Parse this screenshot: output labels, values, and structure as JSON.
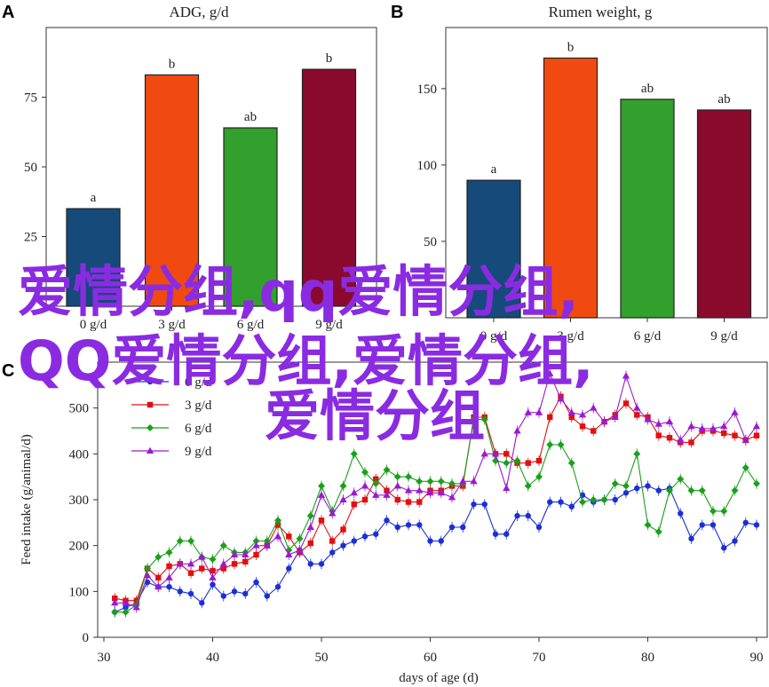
{
  "chart_data": [
    {
      "panel_label": "A",
      "type": "bar",
      "title": "ADG, g/d",
      "categories": [
        "0 g/d",
        "3 g/d",
        "6 g/d",
        "9 g/d"
      ],
      "values": [
        35,
        83,
        64,
        85
      ],
      "labels": [
        "a",
        "b",
        "ab",
        "b"
      ],
      "colors": [
        "#154a7a",
        "#f04a10",
        "#32a02c",
        "#8a0a2e"
      ],
      "ylim": [
        0,
        100
      ],
      "yticks": [
        25,
        50,
        75
      ]
    },
    {
      "panel_label": "B",
      "type": "bar",
      "title": "Rumen weight, g",
      "categories": [
        "0 g/d",
        "3 g/d",
        "6 g/d",
        "9 g/d"
      ],
      "values": [
        90,
        170,
        143,
        136
      ],
      "labels": [
        "a",
        "b",
        "ab",
        "ab"
      ],
      "colors": [
        "#154a7a",
        "#f04a10",
        "#32a02c",
        "#8a0a2e"
      ],
      "ylim": [
        0,
        190
      ],
      "yticks": [
        50,
        100,
        150
      ]
    },
    {
      "panel_label": "C",
      "type": "line",
      "xlabel": "days of age (d)",
      "ylabel": "Feed intake (g/animal/d)",
      "xlim": [
        30,
        90
      ],
      "ylim": [
        0,
        600
      ],
      "xticks": [
        30,
        40,
        50,
        60,
        70,
        80,
        90
      ],
      "yticks": [
        0,
        100,
        200,
        300,
        400,
        500
      ],
      "legend_position": "top-left",
      "series": [
        {
          "name": "0 g/d",
          "color": "#1a2fd6",
          "marker": "circle",
          "x": [
            31,
            32,
            33,
            34,
            35,
            36,
            37,
            38,
            39,
            40,
            41,
            42,
            43,
            44,
            45,
            46,
            47,
            48,
            49,
            50,
            51,
            52,
            53,
            54,
            55,
            56,
            57,
            58,
            59,
            60,
            61,
            62,
            63,
            64,
            65,
            66,
            67,
            68,
            69,
            70,
            71,
            72,
            73,
            74,
            75,
            76,
            77,
            78,
            79,
            80,
            81,
            82,
            83,
            84,
            85,
            86,
            87,
            88,
            89,
            90
          ],
          "y": [
            55,
            65,
            75,
            120,
            110,
            110,
            100,
            95,
            75,
            115,
            90,
            100,
            95,
            120,
            90,
            110,
            150,
            190,
            160,
            160,
            185,
            200,
            210,
            220,
            225,
            255,
            240,
            245,
            245,
            210,
            210,
            240,
            240,
            290,
            290,
            225,
            225,
            265,
            265,
            240,
            295,
            295,
            285,
            310,
            295,
            300,
            300,
            315,
            325,
            330,
            320,
            325,
            270,
            215,
            245,
            245,
            195,
            210,
            250,
            245
          ]
        },
        {
          "name": "3 g/d",
          "color": "#e01010",
          "marker": "square",
          "x": [
            31,
            32,
            33,
            34,
            35,
            36,
            37,
            38,
            39,
            40,
            41,
            42,
            43,
            44,
            45,
            46,
            47,
            48,
            49,
            50,
            51,
            52,
            53,
            54,
            55,
            56,
            57,
            58,
            59,
            60,
            61,
            62,
            63,
            64,
            65,
            66,
            67,
            68,
            69,
            70,
            71,
            72,
            73,
            74,
            75,
            76,
            77,
            78,
            79,
            80,
            81,
            82,
            83,
            84,
            85,
            86,
            87,
            88,
            89,
            90
          ],
          "y": [
            85,
            80,
            80,
            150,
            130,
            155,
            160,
            140,
            150,
            145,
            150,
            160,
            165,
            180,
            200,
            245,
            220,
            185,
            205,
            255,
            210,
            235,
            290,
            300,
            345,
            320,
            300,
            295,
            295,
            320,
            320,
            330,
            330,
            480,
            480,
            400,
            400,
            380,
            380,
            385,
            480,
            525,
            480,
            460,
            450,
            470,
            485,
            510,
            485,
            480,
            440,
            435,
            425,
            425,
            450,
            450,
            445,
            440,
            430,
            440
          ]
        },
        {
          "name": "6 g/d",
          "color": "#1aa01a",
          "marker": "diamond",
          "x": [
            31,
            32,
            33,
            34,
            35,
            36,
            37,
            38,
            39,
            40,
            41,
            42,
            43,
            44,
            45,
            46,
            47,
            48,
            49,
            50,
            51,
            52,
            53,
            54,
            55,
            56,
            57,
            58,
            59,
            60,
            61,
            62,
            63,
            64,
            65,
            66,
            67,
            68,
            69,
            70,
            71,
            72,
            73,
            74,
            75,
            76,
            77,
            78,
            79,
            80,
            81,
            82,
            83,
            84,
            85,
            86,
            87,
            88,
            89,
            90
          ],
          "y": [
            55,
            55,
            70,
            150,
            175,
            185,
            210,
            210,
            175,
            170,
            200,
            185,
            185,
            210,
            210,
            255,
            190,
            215,
            265,
            330,
            275,
            330,
            400,
            360,
            335,
            365,
            350,
            350,
            340,
            340,
            340,
            335,
            335,
            475,
            475,
            385,
            380,
            385,
            330,
            350,
            420,
            420,
            380,
            295,
            300,
            300,
            335,
            330,
            400,
            245,
            230,
            320,
            345,
            320,
            320,
            275,
            275,
            320,
            370,
            335
          ]
        },
        {
          "name": "9 g/d",
          "color": "#9a1ad0",
          "marker": "triangle",
          "x": [
            31,
            32,
            33,
            34,
            35,
            36,
            37,
            38,
            39,
            40,
            41,
            42,
            43,
            44,
            45,
            46,
            47,
            48,
            49,
            50,
            51,
            52,
            53,
            54,
            55,
            56,
            57,
            58,
            59,
            60,
            61,
            62,
            63,
            64,
            65,
            66,
            67,
            68,
            69,
            70,
            71,
            72,
            73,
            74,
            75,
            76,
            77,
            78,
            79,
            80,
            81,
            82,
            83,
            84,
            85,
            86,
            87,
            88,
            89,
            90
          ],
          "y": [
            75,
            75,
            65,
            135,
            110,
            130,
            160,
            160,
            175,
            130,
            160,
            180,
            180,
            200,
            200,
            220,
            180,
            190,
            240,
            310,
            270,
            300,
            315,
            330,
            310,
            310,
            330,
            320,
            320,
            315,
            315,
            305,
            340,
            340,
            400,
            400,
            325,
            450,
            490,
            490,
            575,
            520,
            490,
            485,
            500,
            470,
            480,
            570,
            500,
            475,
            465,
            470,
            430,
            460,
            455,
            455,
            460,
            490,
            430,
            460
          ]
        }
      ]
    }
  ],
  "overlay_text": [
    "爱情分组,qq爱情分组,",
    "QQ爱情分组,爱情分组,",
    "爱情分组"
  ]
}
